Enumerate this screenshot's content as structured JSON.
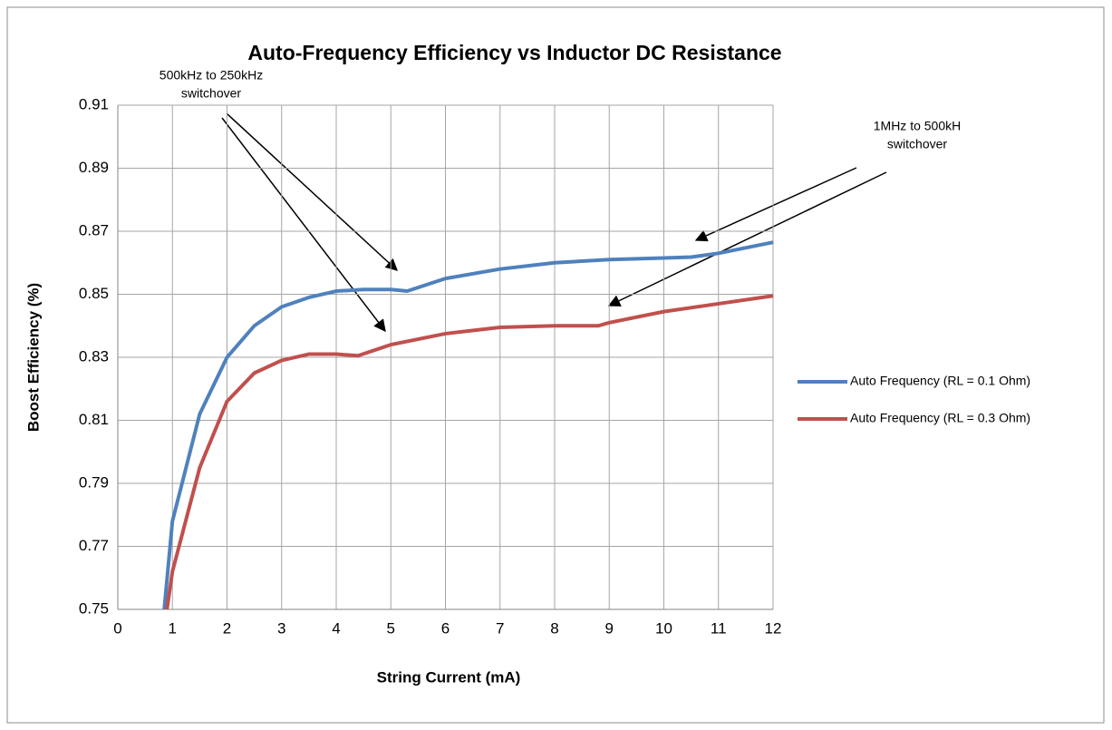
{
  "chart_data": {
    "type": "line",
    "title": "Auto-Frequency Efficiency vs  Inductor DC Resistance",
    "xlabel": "String Current (mA)",
    "ylabel": "Boost Efficiency (%)",
    "xlim": [
      0,
      12
    ],
    "ylim": [
      0.75,
      0.91
    ],
    "xticks": [
      0,
      1,
      2,
      3,
      4,
      5,
      6,
      7,
      8,
      9,
      10,
      11,
      12
    ],
    "yticks": [
      0.75,
      0.77,
      0.79,
      0.81,
      0.83,
      0.85,
      0.87,
      0.89,
      0.91
    ],
    "grid": true,
    "legend": "right",
    "series": [
      {
        "name": "Auto Frequency (RL = 0.1 Ohm)",
        "color": "#4f81bd",
        "x": [
          0.85,
          1,
          1.5,
          2,
          2.5,
          3,
          3.5,
          4,
          4.5,
          5,
          5.3,
          6,
          7,
          8,
          9,
          10,
          10.5,
          11,
          12
        ],
        "values": [
          0.75,
          0.778,
          0.812,
          0.83,
          0.84,
          0.846,
          0.849,
          0.851,
          0.8515,
          0.8515,
          0.851,
          0.855,
          0.858,
          0.86,
          0.861,
          0.8615,
          0.8618,
          0.863,
          0.8665
        ]
      },
      {
        "name": "Auto Frequency (RL = 0.3 Ohm)",
        "color": "#c0504d",
        "x": [
          0.9,
          1,
          1.5,
          2,
          2.5,
          3,
          3.5,
          4,
          4.4,
          5,
          6,
          7,
          8,
          8.8,
          9,
          10,
          11,
          12
        ],
        "values": [
          0.75,
          0.762,
          0.795,
          0.816,
          0.825,
          0.829,
          0.831,
          0.831,
          0.8305,
          0.834,
          0.8375,
          0.8395,
          0.84,
          0.84,
          0.841,
          0.8445,
          0.847,
          0.8495
        ]
      }
    ],
    "annotations": [
      {
        "lines": [
          "500kHz to 250kHz",
          "switchover"
        ]
      },
      {
        "lines": [
          "1MHz to 500kH",
          "switchover"
        ]
      }
    ]
  }
}
